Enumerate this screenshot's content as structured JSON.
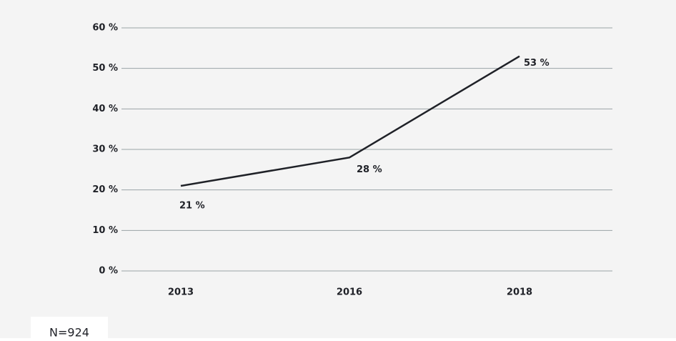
{
  "chart_data": {
    "type": "line",
    "categories": [
      "2013",
      "2016",
      "2018"
    ],
    "values": [
      21,
      28,
      53
    ],
    "value_labels": [
      "21 %",
      "28 %",
      "53 %"
    ],
    "color": "#1f2127",
    "label_colors": [
      "#1f2127",
      "#a3acb2",
      "#8cbf3f"
    ],
    "ylim": [
      0,
      60
    ],
    "yticks": [
      {
        "value": 0,
        "label": "0 %"
      },
      {
        "value": 10,
        "label": "10 %"
      },
      {
        "value": 20,
        "label": "20 %"
      },
      {
        "value": 30,
        "label": "30 %"
      },
      {
        "value": 40,
        "label": "40 %"
      },
      {
        "value": 50,
        "label": "50 %"
      },
      {
        "value": 60,
        "label": "60 %"
      }
    ],
    "grid": true,
    "annotation": "N=924"
  }
}
